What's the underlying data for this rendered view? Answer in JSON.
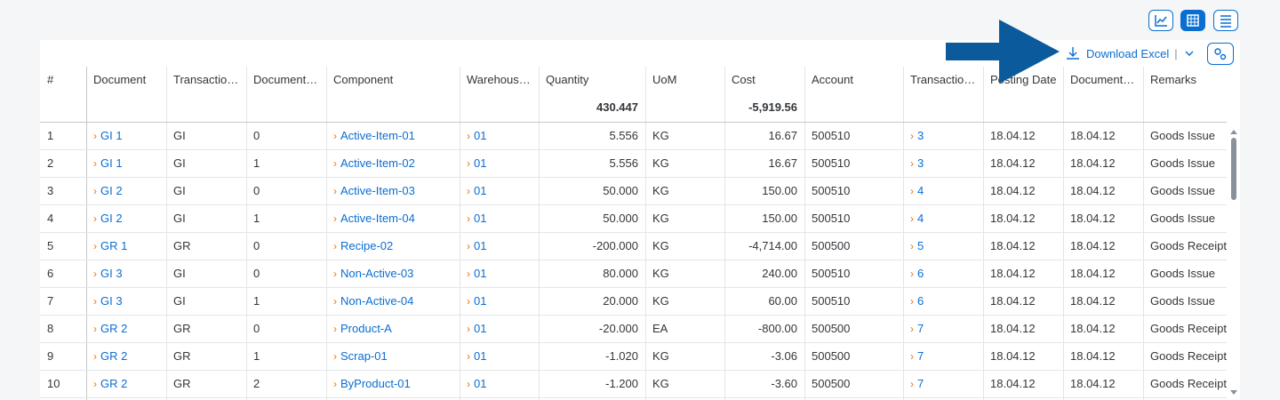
{
  "toolbar": {
    "download": "Download Excel"
  },
  "table": {
    "columns": [
      "#",
      "Document",
      "Transactio…",
      "Document…",
      "Component",
      "Warehous…",
      "Quantity",
      "UoM",
      "Cost",
      "Account",
      "Transactio…",
      "Posting Date",
      "Document…",
      "Remarks"
    ],
    "totals": {
      "quantity": "430.447",
      "cost": "-5,919.56"
    },
    "rows": [
      [
        "1",
        "GI 1",
        "GI",
        "0",
        "Active-Item-01",
        "01",
        "5.556",
        "KG",
        "16.67",
        "500510",
        "3",
        "18.04.12",
        "18.04.12",
        "Goods Issue"
      ],
      [
        "2",
        "GI 1",
        "GI",
        "1",
        "Active-Item-02",
        "01",
        "5.556",
        "KG",
        "16.67",
        "500510",
        "3",
        "18.04.12",
        "18.04.12",
        "Goods Issue"
      ],
      [
        "3",
        "GI 2",
        "GI",
        "0",
        "Active-Item-03",
        "01",
        "50.000",
        "KG",
        "150.00",
        "500510",
        "4",
        "18.04.12",
        "18.04.12",
        "Goods Issue"
      ],
      [
        "4",
        "GI 2",
        "GI",
        "1",
        "Active-Item-04",
        "01",
        "50.000",
        "KG",
        "150.00",
        "500510",
        "4",
        "18.04.12",
        "18.04.12",
        "Goods Issue"
      ],
      [
        "5",
        "GR 1",
        "GR",
        "0",
        "Recipe-02",
        "01",
        "-200.000",
        "KG",
        "-4,714.00",
        "500500",
        "5",
        "18.04.12",
        "18.04.12",
        "Goods Receipt"
      ],
      [
        "6",
        "GI 3",
        "GI",
        "0",
        "Non-Active-03",
        "01",
        "80.000",
        "KG",
        "240.00",
        "500510",
        "6",
        "18.04.12",
        "18.04.12",
        "Goods Issue"
      ],
      [
        "7",
        "GI 3",
        "GI",
        "1",
        "Non-Active-04",
        "01",
        "20.000",
        "KG",
        "60.00",
        "500510",
        "6",
        "18.04.12",
        "18.04.12",
        "Goods Issue"
      ],
      [
        "8",
        "GR 2",
        "GR",
        "0",
        "Product-A",
        "01",
        "-20.000",
        "EA",
        "-800.00",
        "500500",
        "7",
        "18.04.12",
        "18.04.12",
        "Goods Receipt"
      ],
      [
        "9",
        "GR 2",
        "GR",
        "1",
        "Scrap-01",
        "01",
        "-1.020",
        "KG",
        "-3.06",
        "500500",
        "7",
        "18.04.12",
        "18.04.12",
        "Goods Receipt"
      ],
      [
        "10",
        "GR 2",
        "GR",
        "2",
        "ByProduct-01",
        "01",
        "-1.200",
        "KG",
        "-3.60",
        "500500",
        "7",
        "18.04.12",
        "18.04.12",
        "Goods Receipt"
      ]
    ]
  }
}
